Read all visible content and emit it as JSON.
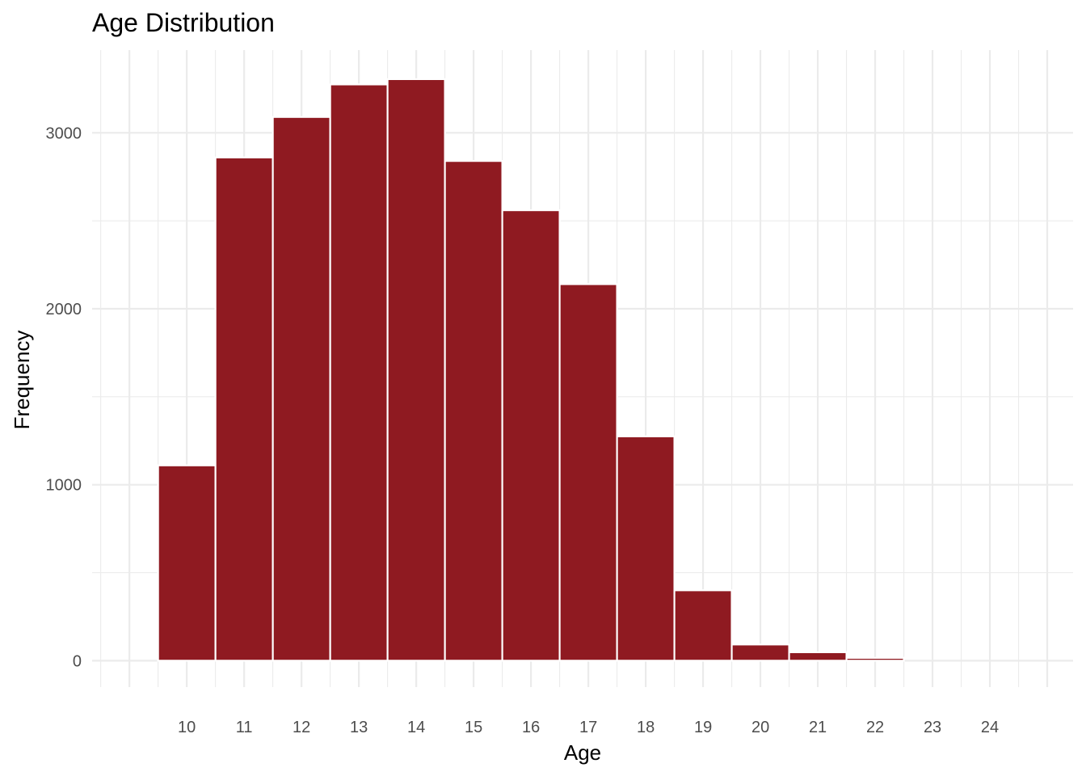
{
  "chart_data": {
    "type": "bar",
    "title": "Age Distribution",
    "xlabel": "Age",
    "ylabel": "Frequency",
    "categories": [
      "10",
      "11",
      "12",
      "13",
      "14",
      "15",
      "16",
      "17",
      "18",
      "19",
      "20",
      "21",
      "22",
      "23",
      "24"
    ],
    "x": [
      10,
      11,
      12,
      13,
      14,
      15,
      16,
      17,
      18,
      19,
      20,
      21,
      22,
      23,
      24
    ],
    "values": [
      1110,
      2860,
      3090,
      3275,
      3305,
      2840,
      2560,
      2140,
      1275,
      400,
      92,
      48,
      16,
      0,
      0
    ],
    "xlim": [
      8.35,
      25.45
    ],
    "ylim": [
      -150,
      3470
    ],
    "y_ticks": [
      0,
      1000,
      2000,
      3000
    ],
    "bar_color": "#8f1a21",
    "bar_edge_color": "#ffffff",
    "grid": true,
    "legend": "none"
  }
}
